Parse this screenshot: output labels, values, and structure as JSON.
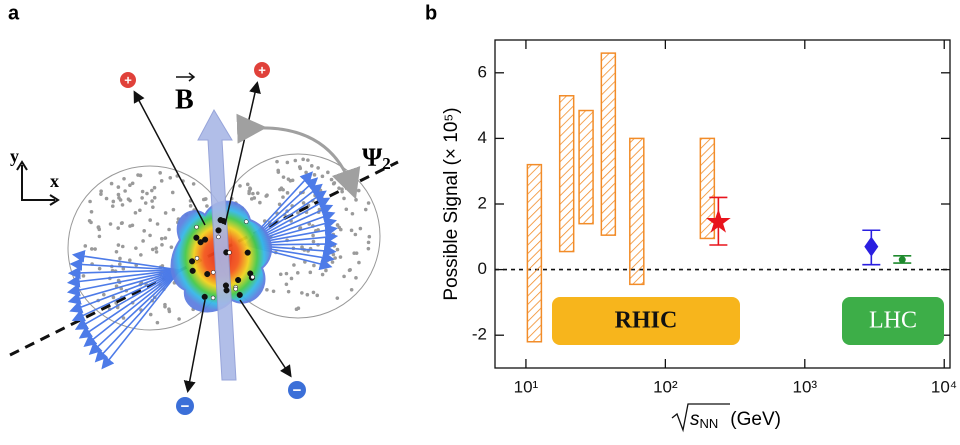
{
  "panel_labels": [
    "a",
    "b"
  ],
  "diagram": {
    "field_label": "B",
    "plane_label": "Ψ",
    "plane_sub": "2",
    "axis_y": "y",
    "axis_x": "x",
    "plus": "+",
    "minus": "−"
  },
  "chart_data": {
    "type": "range",
    "y_label": "Possible Signal (× 10⁵)",
    "x_label": {
      "root": "s",
      "sub": "NN",
      "unit": "(GeV)"
    },
    "xscale": "log",
    "xlim": [
      6,
      11000
    ],
    "xticks": [
      {
        "value": 10,
        "label": "10¹"
      },
      {
        "value": 100,
        "label": "10²"
      },
      {
        "value": 1000,
        "label": "10³"
      },
      {
        "value": 10000,
        "label": "10⁴"
      }
    ],
    "ylim": [
      -3,
      7
    ],
    "yticks": [
      -2,
      0,
      2,
      4,
      6
    ],
    "reference_line": 0,
    "ranges": {
      "x": [
        11.5,
        19.6,
        27,
        39,
        62.4,
        200
      ],
      "low": [
        -2.2,
        0.55,
        1.4,
        1.05,
        -0.45,
        0.95
      ],
      "high": [
        3.2,
        5.3,
        4.85,
        6.6,
        4.0,
        4.0
      ],
      "color": "#f28c28"
    },
    "points": [
      {
        "x": 240,
        "y": 1.45,
        "low": 0.75,
        "high": 2.2,
        "marker": "star",
        "color": "#e8141c"
      },
      {
        "x": 3000,
        "y": 0.7,
        "low": 0.15,
        "high": 1.2,
        "marker": "diamond",
        "color": "#2a1fe0"
      },
      {
        "x": 5000,
        "y": 0.3,
        "low": 0.2,
        "high": 0.42,
        "marker": "circle",
        "color": "#1f8a2e"
      }
    ],
    "annotations": [
      {
        "text": "RHIC",
        "color": "#f7b51c"
      },
      {
        "text": "LHC",
        "color": "#3dae48"
      }
    ]
  }
}
